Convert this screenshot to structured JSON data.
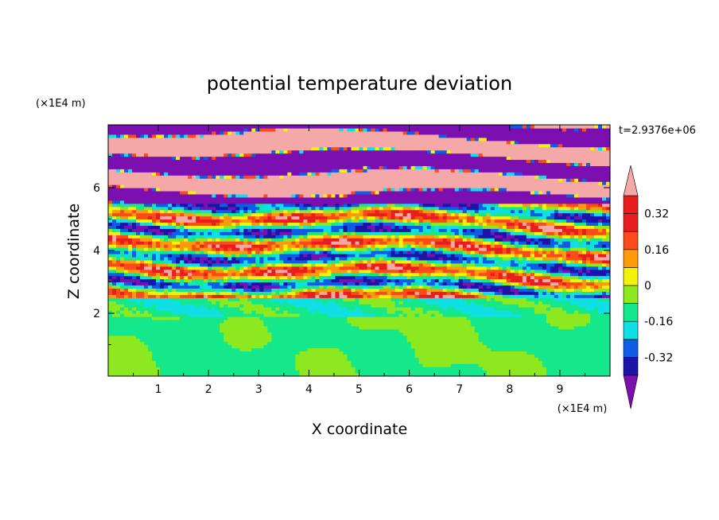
{
  "chart_data": {
    "type": "heatmap",
    "title": "potential temperature deviation",
    "xlabel": "X coordinate",
    "ylabel": "Z coordinate",
    "x_unit": "(×1E4 m)",
    "y_unit": "(×1E4 m)",
    "time_label": "t=2.9376e+06",
    "xlim": [
      0,
      10
    ],
    "ylim": [
      0,
      8
    ],
    "x_ticks": [
      "1",
      "2",
      "3",
      "4",
      "5",
      "6",
      "7",
      "8",
      "9"
    ],
    "x_tick_values": [
      1,
      2,
      3,
      4,
      5,
      6,
      7,
      8,
      9
    ],
    "y_ticks": [
      "2",
      "4",
      "6"
    ],
    "y_tick_values": [
      2,
      4,
      6
    ],
    "colorbar": {
      "levels": [
        -0.4,
        -0.32,
        -0.24,
        -0.16,
        -0.08,
        0,
        0.08,
        0.16,
        0.24,
        0.32,
        0.4
      ],
      "colors": [
        "#7b0fb0",
        "#1c14a8",
        "#0f5ce6",
        "#0fe0e6",
        "#14e88a",
        "#8ee81e",
        "#f2f20a",
        "#ff9a0a",
        "#ff4a1a",
        "#e81e1e",
        "#f5a8a8"
      ],
      "over_color": "#f5a8a8",
      "under_color": "#7b0fb0",
      "tick_labels": [
        "0.32",
        "0.16",
        "0",
        "-0.16",
        "-0.32"
      ],
      "tick_values": [
        0.32,
        0.16,
        0,
        -0.16,
        -0.32
      ]
    },
    "regions": [
      {
        "z_range": [
          0,
          2
        ],
        "description_values": [
          0,
          0.08
        ],
        "dominant": "green/lime"
      },
      {
        "z_range": [
          2,
          2.5
        ],
        "description_values": [
          -0.08,
          0
        ],
        "dominant": "cyan/green"
      },
      {
        "z_range": [
          2.5,
          5.5
        ],
        "description_values": [
          -0.4,
          0.4
        ],
        "dominant": "mixed bands"
      },
      {
        "z_range": [
          5.5,
          8
        ],
        "description_values": [
          -0.4,
          0.4
        ],
        "dominant": "alternating purple/pink bands"
      }
    ]
  }
}
